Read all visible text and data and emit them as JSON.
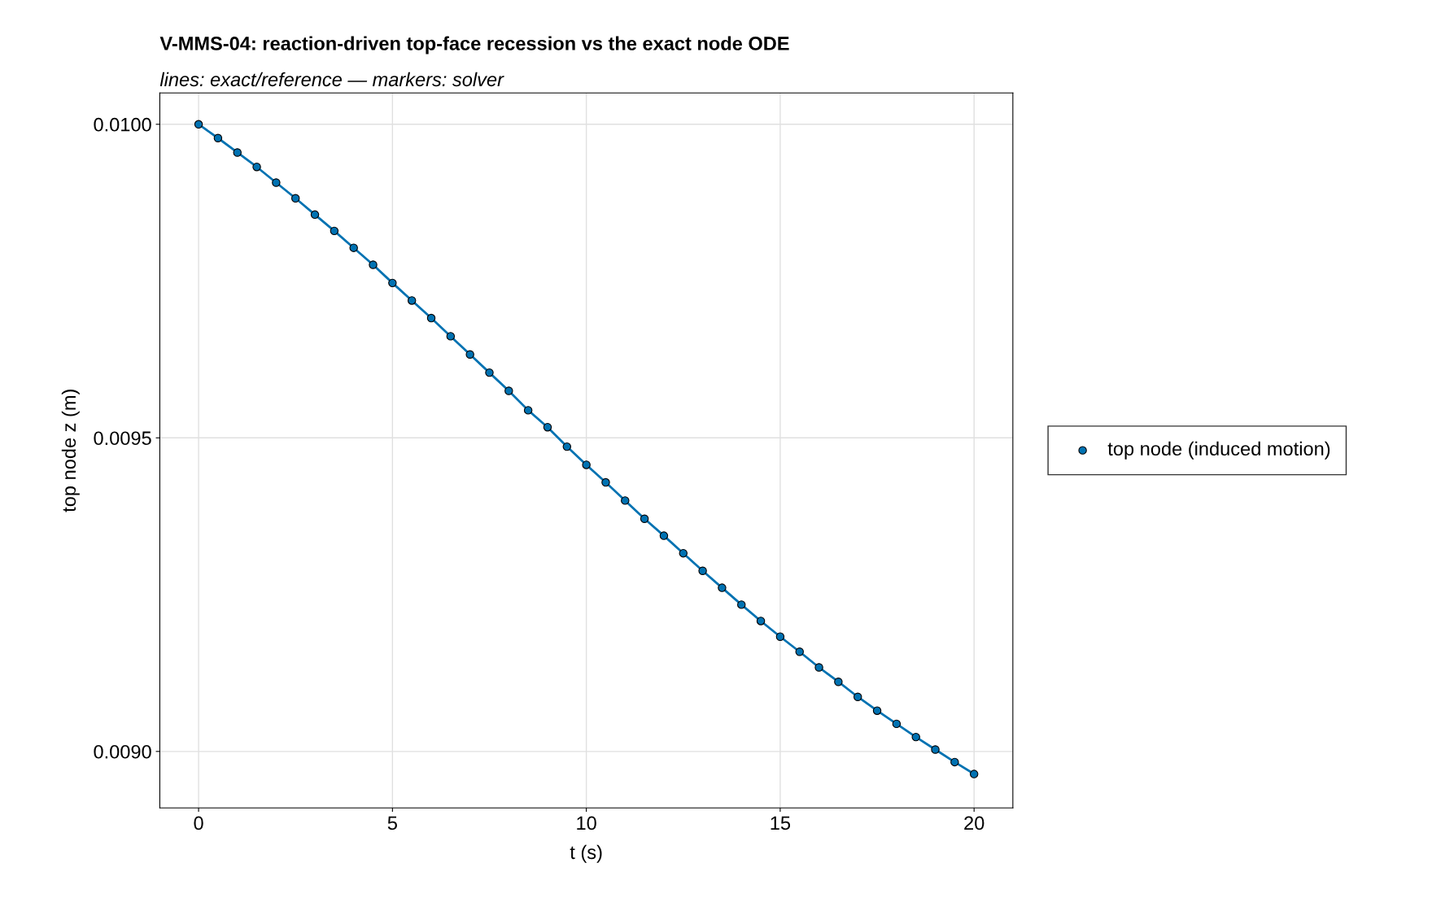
{
  "chart_data": {
    "type": "scatter",
    "title": "V-MMS-04: reaction-driven top-face recession vs the exact node ODE",
    "subtitle": "lines: exact/reference — markers: solver",
    "xlabel": "t (s)",
    "ylabel": "top node z (m)",
    "x": [
      0,
      0.5,
      1,
      1.5,
      2,
      2.5,
      3,
      3.5,
      4,
      4.5,
      5,
      5.5,
      6,
      6.5,
      7,
      7.5,
      8,
      8.5,
      9,
      9.5,
      10,
      10.5,
      11,
      11.5,
      12,
      12.5,
      13,
      13.5,
      14,
      14.5,
      15,
      15.5,
      16,
      16.5,
      17,
      17.5,
      18,
      18.5,
      19,
      19.5,
      20
    ],
    "series": [
      {
        "type": "line",
        "marker": "none",
        "color": "#0072b2",
        "values": [
          0.01,
          0.009978,
          0.009955,
          0.009932,
          0.009907,
          0.009882,
          0.009856,
          0.00983,
          0.009803,
          0.009776,
          0.009747,
          0.009719,
          0.009691,
          0.009662,
          0.009633,
          0.009604,
          0.009575,
          0.009544,
          0.009517,
          0.009486,
          0.009457,
          0.009429,
          0.0094,
          0.009371,
          0.009344,
          0.009316,
          0.009288,
          0.009261,
          0.009234,
          0.009208,
          0.009183,
          0.009159,
          0.009134,
          0.009111,
          0.009087,
          0.009065,
          0.009044,
          0.009023,
          0.009003,
          0.008983,
          0.008964
        ]
      },
      {
        "marker": "circle",
        "name": "top node (induced motion)",
        "color": "#0072b2",
        "values": [
          0.01,
          0.009978,
          0.009955,
          0.009932,
          0.009907,
          0.009882,
          0.009856,
          0.00983,
          0.009803,
          0.009776,
          0.009747,
          0.009719,
          0.009691,
          0.009662,
          0.009633,
          0.009604,
          0.009575,
          0.009544,
          0.009517,
          0.009486,
          0.009457,
          0.009429,
          0.0094,
          0.009371,
          0.009344,
          0.009316,
          0.009288,
          0.009261,
          0.009234,
          0.009208,
          0.009183,
          0.009159,
          0.009134,
          0.009111,
          0.009087,
          0.009065,
          0.009044,
          0.009023,
          0.009003,
          0.008983,
          0.008964
        ]
      }
    ],
    "xlim": [
      -1,
      21
    ],
    "ylim": [
      0.00891,
      0.01005
    ],
    "xticks": [
      0,
      5,
      10,
      15,
      20
    ],
    "yticks": [
      {
        "value": 0.009,
        "label": "0.0090"
      },
      {
        "value": 0.0095,
        "label": "0.0095"
      },
      {
        "value": 0.01,
        "label": "0.0100"
      }
    ],
    "grid": true,
    "legend": "right"
  }
}
